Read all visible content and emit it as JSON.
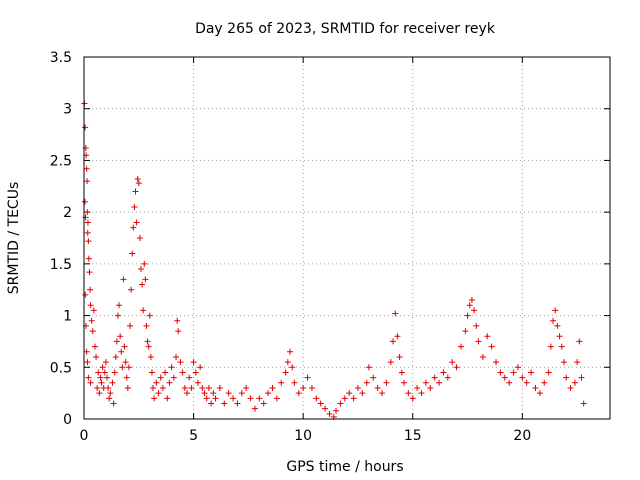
{
  "chart_data": {
    "type": "scatter",
    "title": "Day 265 of 2023, SRMTID for receiver reyk",
    "xlabel": "GPS time / hours",
    "ylabel": "SRMTID / TECUs",
    "xlim": [
      0,
      24
    ],
    "ylim": [
      0,
      3.5
    ],
    "xticks": [
      0,
      5,
      10,
      15,
      20
    ],
    "xtick_labels": [
      "0",
      "5",
      "10",
      "15",
      "20"
    ],
    "yticks": [
      0,
      0.5,
      1,
      1.5,
      2,
      2.5,
      3,
      3.5
    ],
    "ytick_labels": [
      "0",
      "0.5",
      "1",
      "1.5",
      "2",
      "2.5",
      "3",
      "3.5"
    ],
    "grid": true,
    "marker": "+",
    "marker_color": "#e00000",
    "series": [
      {
        "name": "SRMTID",
        "points": [
          [
            0.02,
            3.05
          ],
          [
            0.05,
            2.82
          ],
          [
            0.08,
            2.62
          ],
          [
            0.1,
            2.55
          ],
          [
            0.12,
            2.42
          ],
          [
            0.15,
            2.0
          ],
          [
            0.18,
            1.9
          ],
          [
            0.2,
            1.72
          ],
          [
            0.22,
            1.55
          ],
          [
            0.25,
            1.42
          ],
          [
            0.28,
            1.25
          ],
          [
            0.3,
            1.1
          ],
          [
            0.35,
            0.95
          ],
          [
            0.4,
            0.85
          ],
          [
            0.45,
            1.05
          ],
          [
            0.5,
            0.7
          ],
          [
            0.55,
            0.6
          ],
          [
            0.06,
            1.2
          ],
          [
            0.09,
            0.9
          ],
          [
            0.12,
            0.65
          ],
          [
            0.16,
            0.55
          ],
          [
            0.2,
            0.4
          ],
          [
            0.3,
            0.35
          ],
          [
            0.04,
            2.1
          ],
          [
            0.07,
            1.95
          ],
          [
            0.14,
            2.3
          ],
          [
            0.17,
            1.8
          ],
          [
            0.6,
            0.3
          ],
          [
            0.65,
            0.45
          ],
          [
            0.7,
            0.25
          ],
          [
            0.75,
            0.4
          ],
          [
            0.8,
            0.35
          ],
          [
            0.85,
            0.5
          ],
          [
            0.9,
            0.3
          ],
          [
            0.95,
            0.45
          ],
          [
            1.0,
            0.55
          ],
          [
            1.05,
            0.4
          ],
          [
            1.1,
            0.3
          ],
          [
            1.15,
            0.2
          ],
          [
            1.2,
            0.25
          ],
          [
            1.3,
            0.35
          ],
          [
            1.35,
            0.15
          ],
          [
            1.4,
            0.45
          ],
          [
            1.45,
            0.6
          ],
          [
            1.5,
            0.75
          ],
          [
            1.55,
            1.0
          ],
          [
            1.6,
            1.1
          ],
          [
            1.65,
            0.8
          ],
          [
            1.7,
            0.65
          ],
          [
            1.75,
            0.5
          ],
          [
            1.8,
            1.35
          ],
          [
            1.85,
            0.7
          ],
          [
            1.9,
            0.55
          ],
          [
            1.95,
            0.4
          ],
          [
            2.0,
            0.3
          ],
          [
            2.05,
            0.5
          ],
          [
            2.1,
            0.9
          ],
          [
            2.15,
            1.25
          ],
          [
            2.2,
            1.6
          ],
          [
            2.25,
            1.85
          ],
          [
            2.3,
            2.05
          ],
          [
            2.35,
            2.2
          ],
          [
            2.4,
            1.9
          ],
          [
            2.45,
            2.32
          ],
          [
            2.5,
            2.28
          ],
          [
            2.55,
            1.75
          ],
          [
            2.6,
            1.45
          ],
          [
            2.65,
            1.3
          ],
          [
            2.7,
            1.05
          ],
          [
            2.75,
            1.5
          ],
          [
            2.8,
            1.35
          ],
          [
            2.85,
            0.9
          ],
          [
            2.9,
            0.75
          ],
          [
            2.95,
            0.7
          ],
          [
            3.0,
            1.0
          ],
          [
            3.05,
            0.6
          ],
          [
            3.1,
            0.45
          ],
          [
            3.15,
            0.3
          ],
          [
            3.2,
            0.2
          ],
          [
            3.3,
            0.35
          ],
          [
            3.4,
            0.25
          ],
          [
            3.5,
            0.4
          ],
          [
            3.6,
            0.3
          ],
          [
            3.7,
            0.45
          ],
          [
            3.8,
            0.2
          ],
          [
            3.9,
            0.35
          ],
          [
            4.0,
            0.5
          ],
          [
            4.1,
            0.4
          ],
          [
            4.2,
            0.6
          ],
          [
            4.25,
            0.95
          ],
          [
            4.3,
            0.85
          ],
          [
            4.4,
            0.55
          ],
          [
            4.5,
            0.45
          ],
          [
            4.6,
            0.3
          ],
          [
            4.7,
            0.25
          ],
          [
            4.8,
            0.4
          ],
          [
            4.9,
            0.3
          ],
          [
            5.0,
            0.55
          ],
          [
            5.1,
            0.45
          ],
          [
            5.2,
            0.35
          ],
          [
            5.3,
            0.5
          ],
          [
            5.4,
            0.3
          ],
          [
            5.5,
            0.25
          ],
          [
            5.6,
            0.2
          ],
          [
            5.7,
            0.3
          ],
          [
            5.8,
            0.15
          ],
          [
            5.9,
            0.25
          ],
          [
            6.0,
            0.2
          ],
          [
            6.2,
            0.3
          ],
          [
            6.4,
            0.15
          ],
          [
            6.6,
            0.25
          ],
          [
            6.8,
            0.2
          ],
          [
            7.0,
            0.15
          ],
          [
            7.2,
            0.25
          ],
          [
            7.4,
            0.3
          ],
          [
            7.6,
            0.2
          ],
          [
            7.8,
            0.1
          ],
          [
            8.0,
            0.2
          ],
          [
            8.2,
            0.15
          ],
          [
            8.4,
            0.25
          ],
          [
            8.6,
            0.3
          ],
          [
            8.8,
            0.2
          ],
          [
            9.0,
            0.35
          ],
          [
            9.2,
            0.45
          ],
          [
            9.3,
            0.55
          ],
          [
            9.4,
            0.65
          ],
          [
            9.5,
            0.5
          ],
          [
            9.6,
            0.35
          ],
          [
            9.8,
            0.25
          ],
          [
            10.0,
            0.3
          ],
          [
            10.2,
            0.4
          ],
          [
            10.4,
            0.3
          ],
          [
            10.6,
            0.2
          ],
          [
            10.8,
            0.15
          ],
          [
            11.0,
            0.1
          ],
          [
            11.2,
            0.05
          ],
          [
            11.4,
            0.02
          ],
          [
            11.5,
            0.08
          ],
          [
            11.7,
            0.15
          ],
          [
            11.9,
            0.2
          ],
          [
            12.1,
            0.25
          ],
          [
            12.3,
            0.2
          ],
          [
            12.5,
            0.3
          ],
          [
            12.7,
            0.25
          ],
          [
            12.9,
            0.35
          ],
          [
            13.0,
            0.5
          ],
          [
            13.2,
            0.4
          ],
          [
            13.4,
            0.3
          ],
          [
            13.6,
            0.25
          ],
          [
            13.8,
            0.35
          ],
          [
            14.0,
            0.55
          ],
          [
            14.1,
            0.75
          ],
          [
            14.2,
            1.02
          ],
          [
            14.3,
            0.8
          ],
          [
            14.4,
            0.6
          ],
          [
            14.5,
            0.45
          ],
          [
            14.6,
            0.35
          ],
          [
            14.8,
            0.25
          ],
          [
            15.0,
            0.2
          ],
          [
            15.2,
            0.3
          ],
          [
            15.4,
            0.25
          ],
          [
            15.6,
            0.35
          ],
          [
            15.8,
            0.3
          ],
          [
            16.0,
            0.4
          ],
          [
            16.2,
            0.35
          ],
          [
            16.4,
            0.45
          ],
          [
            16.6,
            0.4
          ],
          [
            16.8,
            0.55
          ],
          [
            17.0,
            0.5
          ],
          [
            17.2,
            0.7
          ],
          [
            17.4,
            0.85
          ],
          [
            17.5,
            1.0
          ],
          [
            17.6,
            1.1
          ],
          [
            17.7,
            1.15
          ],
          [
            17.8,
            1.05
          ],
          [
            17.9,
            0.9
          ],
          [
            18.0,
            0.75
          ],
          [
            18.2,
            0.6
          ],
          [
            18.4,
            0.8
          ],
          [
            18.6,
            0.7
          ],
          [
            18.8,
            0.55
          ],
          [
            19.0,
            0.45
          ],
          [
            19.2,
            0.4
          ],
          [
            19.4,
            0.35
          ],
          [
            19.6,
            0.45
          ],
          [
            19.8,
            0.5
          ],
          [
            20.0,
            0.4
          ],
          [
            20.2,
            0.35
          ],
          [
            20.4,
            0.45
          ],
          [
            20.6,
            0.3
          ],
          [
            20.8,
            0.25
          ],
          [
            21.0,
            0.35
          ],
          [
            21.2,
            0.45
          ],
          [
            21.3,
            0.7
          ],
          [
            21.4,
            0.95
          ],
          [
            21.5,
            1.05
          ],
          [
            21.6,
            0.9
          ],
          [
            21.7,
            0.8
          ],
          [
            21.8,
            0.7
          ],
          [
            21.9,
            0.55
          ],
          [
            22.0,
            0.4
          ],
          [
            22.2,
            0.3
          ],
          [
            22.4,
            0.35
          ],
          [
            22.5,
            0.55
          ],
          [
            22.6,
            0.75
          ],
          [
            22.7,
            0.4
          ],
          [
            22.8,
            0.15
          ]
        ]
      }
    ]
  }
}
